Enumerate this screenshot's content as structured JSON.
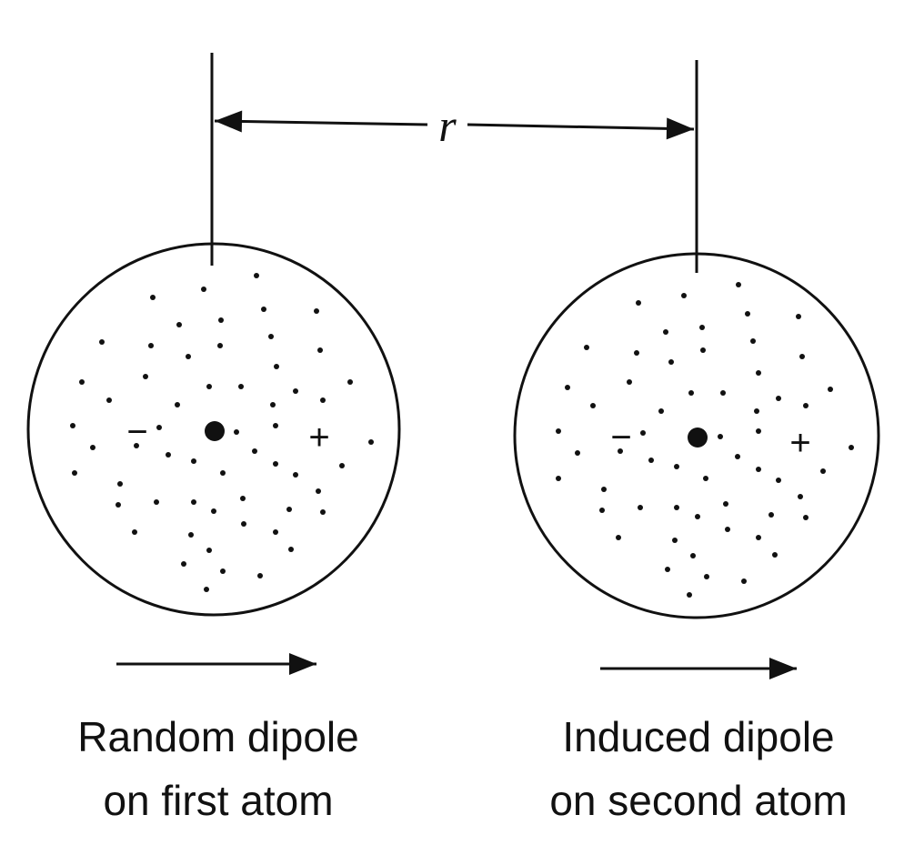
{
  "distance": {
    "symbol": "r"
  },
  "atoms": [
    {
      "id": "first",
      "minus": "−",
      "plus": "+",
      "caption_line1": "Random dipole",
      "caption_line2": "on first atom"
    },
    {
      "id": "second",
      "minus": "−",
      "plus": "+",
      "caption_line1": "Induced dipole",
      "caption_line2": "on second atom"
    }
  ]
}
